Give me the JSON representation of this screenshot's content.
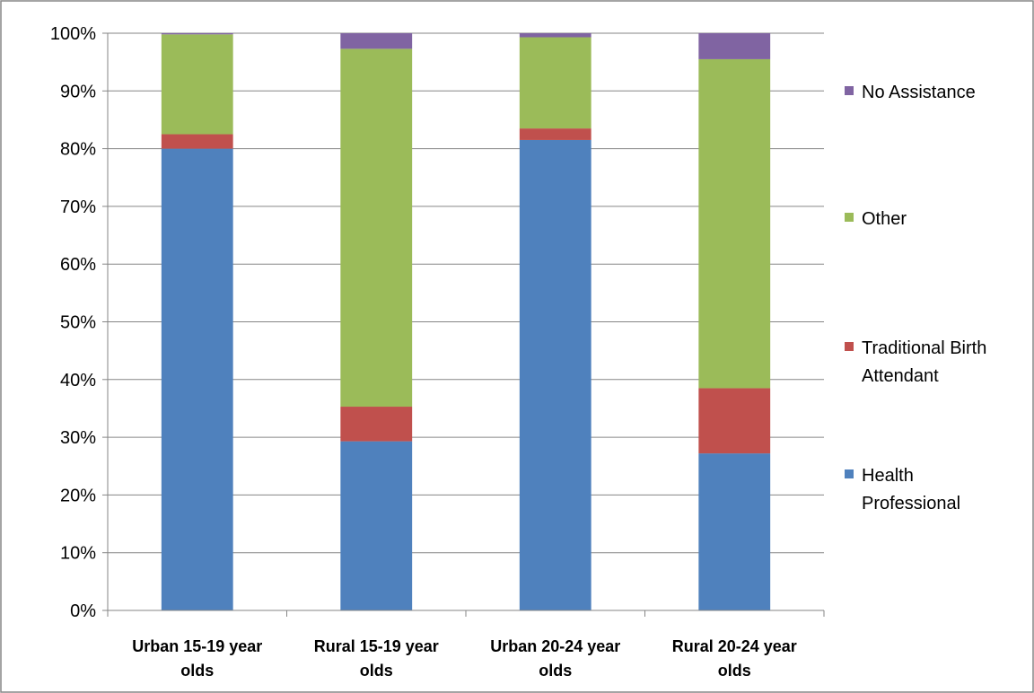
{
  "chart_data": {
    "type": "bar",
    "stacked": true,
    "normalized": true,
    "categories": [
      "Urban 15-19 year olds",
      "Rural 15-19 year olds",
      "Urban 20-24 year olds",
      "Rural 20-24 year olds"
    ],
    "category_lines": [
      [
        "Urban 15-19 year",
        "olds"
      ],
      [
        "Rural 15-19 year",
        "olds"
      ],
      [
        "Urban 20-24 year",
        "olds"
      ],
      [
        "Rural 20-24 year",
        "olds"
      ]
    ],
    "series": [
      {
        "name": "Health Professional",
        "name_lines": [
          "Health",
          "Professional"
        ],
        "color": "#4f81bd",
        "values": [
          80,
          29.3,
          81.5,
          27.2
        ]
      },
      {
        "name": "Traditional Birth Attendant",
        "name_lines": [
          "Traditional Birth",
          "Attendant"
        ],
        "color": "#c0504d",
        "values": [
          2.5,
          6,
          2,
          11.3
        ]
      },
      {
        "name": "Other",
        "name_lines": [
          "Other"
        ],
        "color": "#9bbb59",
        "values": [
          17.3,
          62,
          15.8,
          57
        ]
      },
      {
        "name": "No Assistance",
        "name_lines": [
          "No Assistance"
        ],
        "color": "#8064a2",
        "values": [
          0.2,
          2.7,
          0.7,
          4.5
        ]
      }
    ],
    "ylim": [
      0,
      100
    ],
    "y_ticks": [
      "0%",
      "10%",
      "20%",
      "30%",
      "40%",
      "50%",
      "60%",
      "70%",
      "80%",
      "90%",
      "100%"
    ],
    "grid": true,
    "legend_position": "right",
    "title": "",
    "xlabel": "",
    "ylabel": ""
  }
}
